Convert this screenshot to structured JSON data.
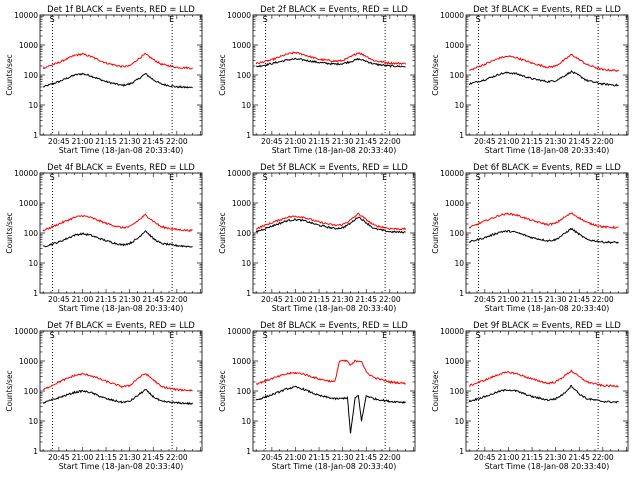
{
  "figure": {
    "ylabel": "Counts/sec",
    "xlabel": "Start Time (18-Jan-08 20:33:40)",
    "x_ticks": [
      "20:45",
      "21:00",
      "21:15",
      "21:30",
      "21:45",
      "22:00"
    ],
    "y_ticks": [
      "1",
      "10",
      "100",
      "1000",
      "10000"
    ],
    "marker_start": "S",
    "marker_end": "E",
    "colors": {
      "events": "#000000",
      "lld": "#ff0000"
    }
  },
  "chart_data": [
    {
      "type": "line",
      "y_scale": "log",
      "ylim": [
        1,
        10000
      ],
      "title": "Det 1f BLACK = Events, RED = LLD",
      "x": [
        "20:35",
        "20:45",
        "20:55",
        "21:00",
        "21:05",
        "21:15",
        "21:25",
        "21:30",
        "21:35",
        "21:40",
        "21:45",
        "21:50",
        "22:00",
        "22:10"
      ],
      "series": [
        {
          "name": "BLACK = Events",
          "values": [
            40,
            60,
            100,
            110,
            95,
            60,
            45,
            50,
            70,
            110,
            70,
            50,
            40,
            38
          ]
        },
        {
          "name": "RED = LLD",
          "values": [
            170,
            260,
            450,
            500,
            420,
            250,
            190,
            200,
            330,
            500,
            330,
            230,
            180,
            170
          ]
        }
      ]
    },
    {
      "type": "line",
      "y_scale": "log",
      "ylim": [
        1,
        10000
      ],
      "title": "Det 2f BLACK = Events, RED = LLD",
      "x": [
        "20:35",
        "20:45",
        "20:55",
        "21:00",
        "21:05",
        "21:15",
        "21:25",
        "21:30",
        "21:35",
        "21:40",
        "21:45",
        "21:50",
        "22:00",
        "22:10"
      ],
      "series": [
        {
          "name": "BLACK = Events",
          "values": [
            190,
            240,
            320,
            340,
            320,
            260,
            230,
            240,
            280,
            340,
            290,
            230,
            200,
            190
          ]
        },
        {
          "name": "RED = LLD",
          "values": [
            240,
            320,
            500,
            560,
            480,
            330,
            290,
            300,
            400,
            560,
            420,
            300,
            250,
            240
          ]
        }
      ]
    },
    {
      "type": "line",
      "y_scale": "log",
      "ylim": [
        1,
        10000
      ],
      "title": "Det 3f BLACK = Events, RED = LLD",
      "x": [
        "20:35",
        "20:45",
        "20:55",
        "21:00",
        "21:05",
        "21:15",
        "21:25",
        "21:30",
        "21:35",
        "21:40",
        "21:45",
        "21:50",
        "22:00",
        "22:10"
      ],
      "series": [
        {
          "name": "BLACK = Events",
          "values": [
            50,
            70,
            110,
            120,
            110,
            75,
            60,
            65,
            90,
            130,
            95,
            65,
            50,
            45
          ]
        },
        {
          "name": "RED = LLD",
          "values": [
            140,
            230,
            380,
            420,
            380,
            250,
            180,
            200,
            300,
            480,
            330,
            220,
            150,
            140
          ]
        }
      ]
    },
    {
      "type": "line",
      "y_scale": "log",
      "ylim": [
        1,
        10000
      ],
      "title": "Det 4f BLACK = Events, RED = LLD",
      "x": [
        "20:35",
        "20:45",
        "20:55",
        "21:00",
        "21:05",
        "21:15",
        "21:25",
        "21:30",
        "21:35",
        "21:40",
        "21:45",
        "21:50",
        "22:00",
        "22:10"
      ],
      "series": [
        {
          "name": "BLACK = Events",
          "values": [
            35,
            50,
            85,
            95,
            85,
            55,
            40,
            45,
            65,
            120,
            65,
            45,
            38,
            35
          ]
        },
        {
          "name": "RED = LLD",
          "values": [
            120,
            200,
            330,
            380,
            330,
            210,
            150,
            160,
            250,
            400,
            250,
            160,
            130,
            120
          ]
        }
      ]
    },
    {
      "type": "line",
      "y_scale": "log",
      "ylim": [
        1,
        10000
      ],
      "title": "Det 5f BLACK = Events, RED = LLD",
      "x": [
        "20:35",
        "20:45",
        "20:55",
        "21:00",
        "21:05",
        "21:15",
        "21:25",
        "21:30",
        "21:35",
        "21:40",
        "21:45",
        "21:50",
        "22:00",
        "22:10"
      ],
      "series": [
        {
          "name": "BLACK = Events",
          "values": [
            110,
            170,
            260,
            280,
            260,
            180,
            140,
            150,
            210,
            350,
            220,
            140,
            110,
            105
          ]
        },
        {
          "name": "RED = LLD",
          "values": [
            140,
            220,
            340,
            360,
            340,
            230,
            180,
            190,
            270,
            440,
            280,
            180,
            140,
            135
          ]
        }
      ]
    },
    {
      "type": "line",
      "y_scale": "log",
      "ylim": [
        1,
        10000
      ],
      "title": "Det 6f BLACK = Events, RED = LLD",
      "x": [
        "20:35",
        "20:45",
        "20:55",
        "21:00",
        "21:05",
        "21:15",
        "21:25",
        "21:30",
        "21:35",
        "21:40",
        "21:45",
        "21:50",
        "22:00",
        "22:10"
      ],
      "series": [
        {
          "name": "BLACK = Events",
          "values": [
            50,
            70,
            110,
            115,
            105,
            70,
            55,
            60,
            90,
            140,
            90,
            60,
            50,
            48
          ]
        },
        {
          "name": "RED = LLD",
          "values": [
            150,
            250,
            400,
            440,
            400,
            260,
            190,
            210,
            320,
            460,
            320,
            220,
            160,
            150
          ]
        }
      ]
    },
    {
      "type": "line",
      "y_scale": "log",
      "ylim": [
        1,
        10000
      ],
      "title": "Det 7f BLACK = Events, RED = LLD",
      "x": [
        "20:35",
        "20:45",
        "20:55",
        "21:00",
        "21:05",
        "21:15",
        "21:25",
        "21:30",
        "21:35",
        "21:40",
        "21:45",
        "21:50",
        "22:00",
        "22:10"
      ],
      "series": [
        {
          "name": "BLACK = Events",
          "values": [
            40,
            60,
            90,
            100,
            90,
            55,
            42,
            45,
            70,
            110,
            65,
            45,
            40,
            38
          ]
        },
        {
          "name": "RED = LLD",
          "values": [
            110,
            200,
            330,
            370,
            330,
            210,
            140,
            150,
            260,
            380,
            240,
            140,
            110,
            105
          ]
        }
      ]
    },
    {
      "type": "line",
      "y_scale": "log",
      "ylim": [
        1,
        10000
      ],
      "title": "Det 8f BLACK = Events, RED = LLD",
      "x": [
        "20:35",
        "20:45",
        "20:55",
        "21:00",
        "21:05",
        "21:15",
        "21:25",
        "21:28",
        "21:33",
        "21:35",
        "21:38",
        "21:40",
        "21:42",
        "21:45",
        "21:50",
        "22:00",
        "22:10"
      ],
      "series": [
        {
          "name": "BLACK = Events",
          "values": [
            50,
            75,
            120,
            135,
            115,
            70,
            55,
            55,
            60,
            4,
            60,
            70,
            10,
            70,
            55,
            45,
            42
          ]
        },
        {
          "name": "RED = LLD",
          "values": [
            170,
            260,
            380,
            400,
            370,
            250,
            200,
            1000,
            1000,
            700,
            1000,
            1000,
            1000,
            420,
            280,
            200,
            180
          ]
        }
      ]
    },
    {
      "type": "line",
      "y_scale": "log",
      "ylim": [
        1,
        10000
      ],
      "title": "Det 9f BLACK = Events, RED = LLD",
      "x": [
        "20:35",
        "20:45",
        "20:55",
        "21:00",
        "21:05",
        "21:15",
        "21:25",
        "21:30",
        "21:35",
        "21:40",
        "21:45",
        "21:50",
        "22:00",
        "22:10"
      ],
      "series": [
        {
          "name": "BLACK = Events",
          "values": [
            45,
            65,
            100,
            110,
            100,
            65,
            50,
            55,
            80,
            150,
            80,
            55,
            45,
            42
          ]
        },
        {
          "name": "RED = LLD",
          "values": [
            150,
            230,
            380,
            420,
            380,
            250,
            180,
            200,
            300,
            470,
            300,
            200,
            150,
            145
          ]
        }
      ]
    }
  ]
}
